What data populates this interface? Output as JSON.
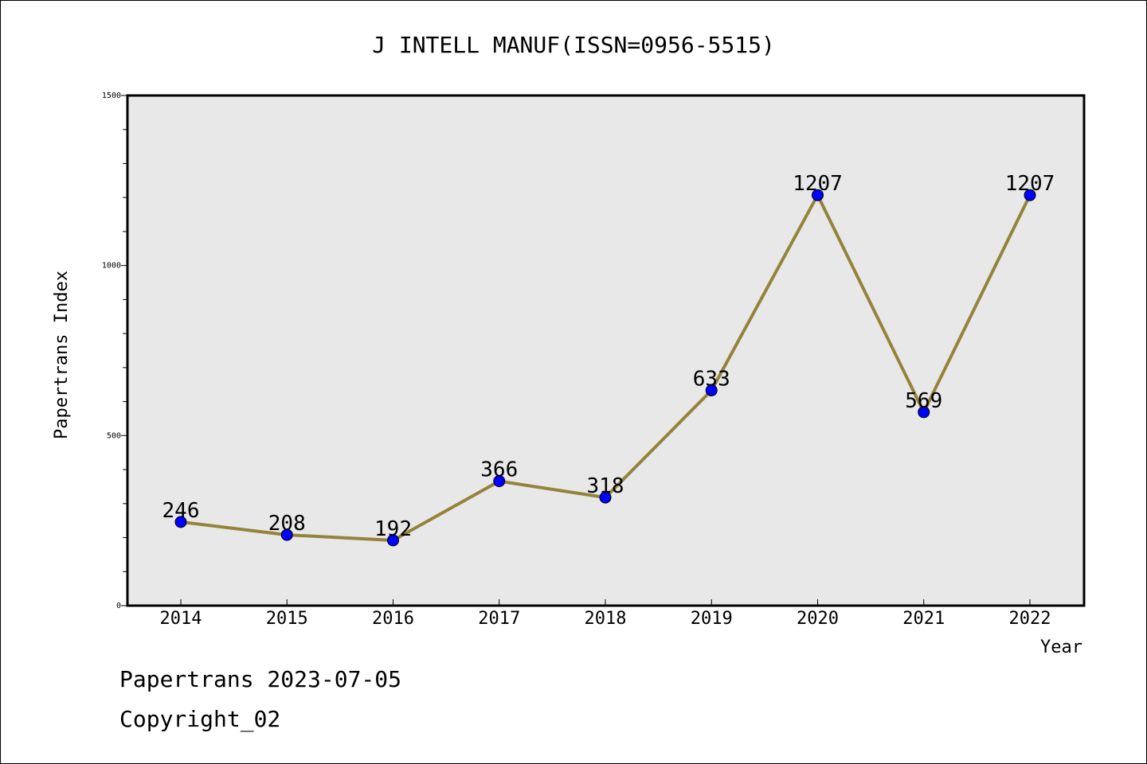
{
  "chart_data": {
    "type": "line",
    "title": "J INTELL MANUF(ISSN=0956-5515)",
    "xlabel": "Year",
    "ylabel": "Papertrans Index",
    "categories": [
      "2014",
      "2015",
      "2016",
      "2017",
      "2018",
      "2019",
      "2020",
      "2021",
      "2022"
    ],
    "series": [
      {
        "values": [
          246,
          208,
          192,
          366,
          318,
          633,
          1207,
          569,
          1207
        ]
      }
    ],
    "data_labels": [
      "246",
      "208",
      "192",
      "366",
      "318",
      "633",
      "1207",
      "569",
      "1207"
    ],
    "ylim": [
      0,
      1500
    ],
    "yticks": [
      "0",
      "500",
      "1000",
      "1500"
    ],
    "ytick_values": [
      0,
      500,
      1000,
      1500
    ],
    "yminor_step": 100,
    "grid": false,
    "colors": {
      "line": "#94833a",
      "marker": "#0000ff",
      "plot_background": "#e8e8e8"
    }
  },
  "footer": {
    "line1": "Papertrans 2023-07-05",
    "line2": "Copyright_02"
  }
}
